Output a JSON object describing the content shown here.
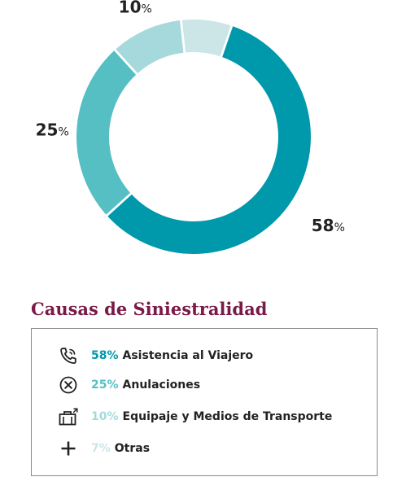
{
  "chart_data": {
    "type": "pie",
    "style": "donut",
    "title": "Causas de Siniestralidad",
    "categories": [
      "Asistencia al Viajero",
      "Anulaciones",
      "Equipaje y Medios de Transporte",
      "Otras"
    ],
    "values": [
      58,
      25,
      10,
      7
    ],
    "value_labels": [
      "58",
      "25",
      "10",
      "7"
    ],
    "unit": "%",
    "colors": [
      "#0098ab",
      "#56bfc4",
      "#a6d9db",
      "#cce6e8"
    ],
    "legend_placement": "bottom"
  },
  "legend": [
    {
      "icon": "phone-icon",
      "pct": "58%",
      "label": "Asistencia al Viajero",
      "color": "#0098ab"
    },
    {
      "icon": "cancel-x-icon",
      "pct": "25%",
      "label": "Anulaciones",
      "color": "#56bfc4"
    },
    {
      "icon": "luggage-icon",
      "pct": "10%",
      "label": "Equipaje y Medios de Transporte",
      "color": "#a6d9db"
    },
    {
      "icon": "plus-icon",
      "pct": "7%",
      "label": "Otras",
      "color": "#cce6e8"
    }
  ]
}
